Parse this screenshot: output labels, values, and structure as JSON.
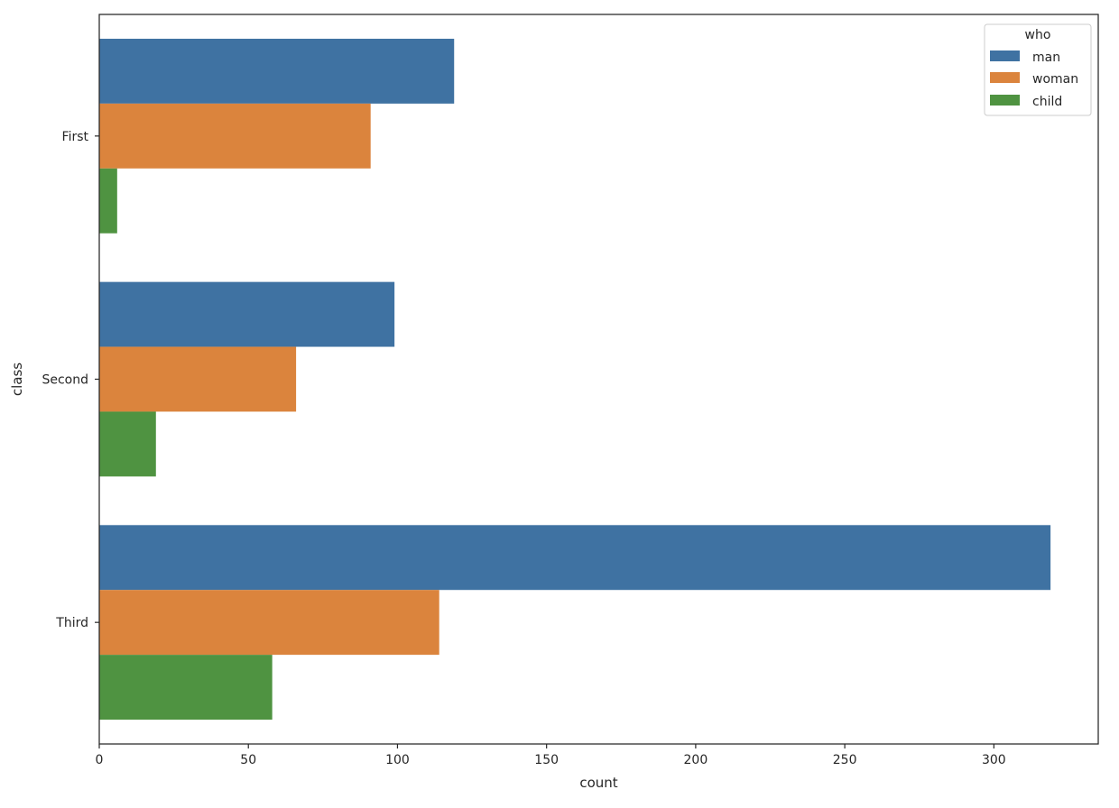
{
  "chart_data": {
    "type": "bar",
    "orientation": "horizontal",
    "title": "",
    "xlabel": "count",
    "ylabel": "class",
    "categories": [
      "First",
      "Second",
      "Third"
    ],
    "series": [
      {
        "name": "man",
        "color": "#3f72a2",
        "values": [
          119,
          99,
          319
        ]
      },
      {
        "name": "woman",
        "color": "#db843d",
        "values": [
          91,
          66,
          114
        ]
      },
      {
        "name": "child",
        "color": "#4f9341",
        "values": [
          6,
          19,
          58
        ]
      }
    ],
    "xlim": [
      0,
      335
    ],
    "xticks": [
      0,
      50,
      100,
      150,
      200,
      250,
      300
    ],
    "grid": false,
    "legend": {
      "title": "who",
      "placement": "top-right"
    }
  }
}
